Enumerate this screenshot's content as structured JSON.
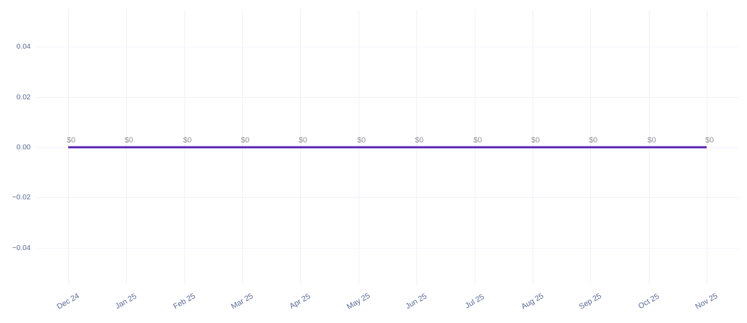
{
  "page": {
    "background": "#ffffff"
  },
  "chart_data": {
    "type": "line",
    "title": "",
    "xlabel": "",
    "ylabel": "",
    "x_categories": [
      "Dec 24",
      "Jan 25",
      "Feb 25",
      "Mar 25",
      "Apr 25",
      "May 25",
      "Jun 25",
      "Jul 25",
      "Aug 25",
      "Sep 25",
      "Oct 25",
      "Nov 25"
    ],
    "series": [
      {
        "name": "",
        "values": [
          0,
          0,
          0,
          0,
          0,
          0,
          0,
          0,
          0,
          0,
          0,
          0
        ],
        "point_labels": [
          "$0",
          "$0",
          "$0",
          "$0",
          "$0",
          "$0",
          "$0",
          "$0",
          "$0",
          "$0",
          "$0",
          "$0"
        ],
        "color": "#5a21b4"
      }
    ],
    "yticks": {
      "values": [
        0.04,
        0.02,
        0,
        -0.02,
        -0.04
      ],
      "labels": [
        "0.04",
        "0.02",
        "0.00",
        "−0.02",
        "−0.04"
      ]
    },
    "ylim": [
      -0.0548,
      0.0548
    ],
    "grid": true,
    "legend": false,
    "colors": {
      "axis_label": "#5a6996",
      "point_label": "#8f9097",
      "grid_horizontal": "#f5f2fb",
      "grid_vertical": "#f3eefb"
    }
  }
}
